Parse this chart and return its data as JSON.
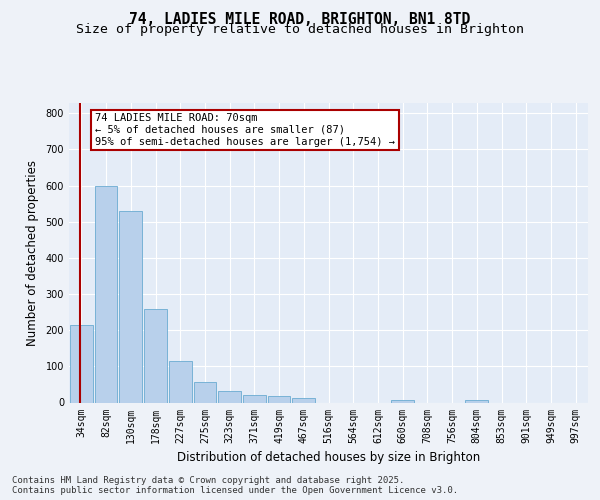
{
  "title": "74, LADIES MILE ROAD, BRIGHTON, BN1 8TD",
  "subtitle": "Size of property relative to detached houses in Brighton",
  "xlabel": "Distribution of detached houses by size in Brighton",
  "ylabel": "Number of detached properties",
  "categories": [
    "34sqm",
    "82sqm",
    "130sqm",
    "178sqm",
    "227sqm",
    "275sqm",
    "323sqm",
    "371sqm",
    "419sqm",
    "467sqm",
    "516sqm",
    "564sqm",
    "612sqm",
    "660sqm",
    "708sqm",
    "756sqm",
    "804sqm",
    "853sqm",
    "901sqm",
    "949sqm",
    "997sqm"
  ],
  "values": [
    215,
    600,
    530,
    258,
    116,
    56,
    33,
    20,
    17,
    13,
    0,
    0,
    0,
    8,
    0,
    0,
    7,
    0,
    0,
    0,
    0
  ],
  "bar_color": "#b8d0eb",
  "bar_edge_color": "#6aabd2",
  "highlight_color": "#aa0000",
  "vline_x": -0.07,
  "annotation_text": "74 LADIES MILE ROAD: 70sqm\n← 5% of detached houses are smaller (87)\n95% of semi-detached houses are larger (1,754) →",
  "annotation_box_facecolor": "#ffffff",
  "annotation_box_edgecolor": "#aa0000",
  "ylim": [
    0,
    830
  ],
  "yticks": [
    0,
    100,
    200,
    300,
    400,
    500,
    600,
    700,
    800
  ],
  "background_color": "#eef2f8",
  "plot_background_color": "#e4ecf7",
  "grid_color": "#ffffff",
  "footer_text": "Contains HM Land Registry data © Crown copyright and database right 2025.\nContains public sector information licensed under the Open Government Licence v3.0.",
  "title_fontsize": 10.5,
  "subtitle_fontsize": 9.5,
  "ylabel_fontsize": 8.5,
  "xlabel_fontsize": 8.5,
  "tick_fontsize": 7,
  "annotation_fontsize": 7.5,
  "footer_fontsize": 6.5
}
